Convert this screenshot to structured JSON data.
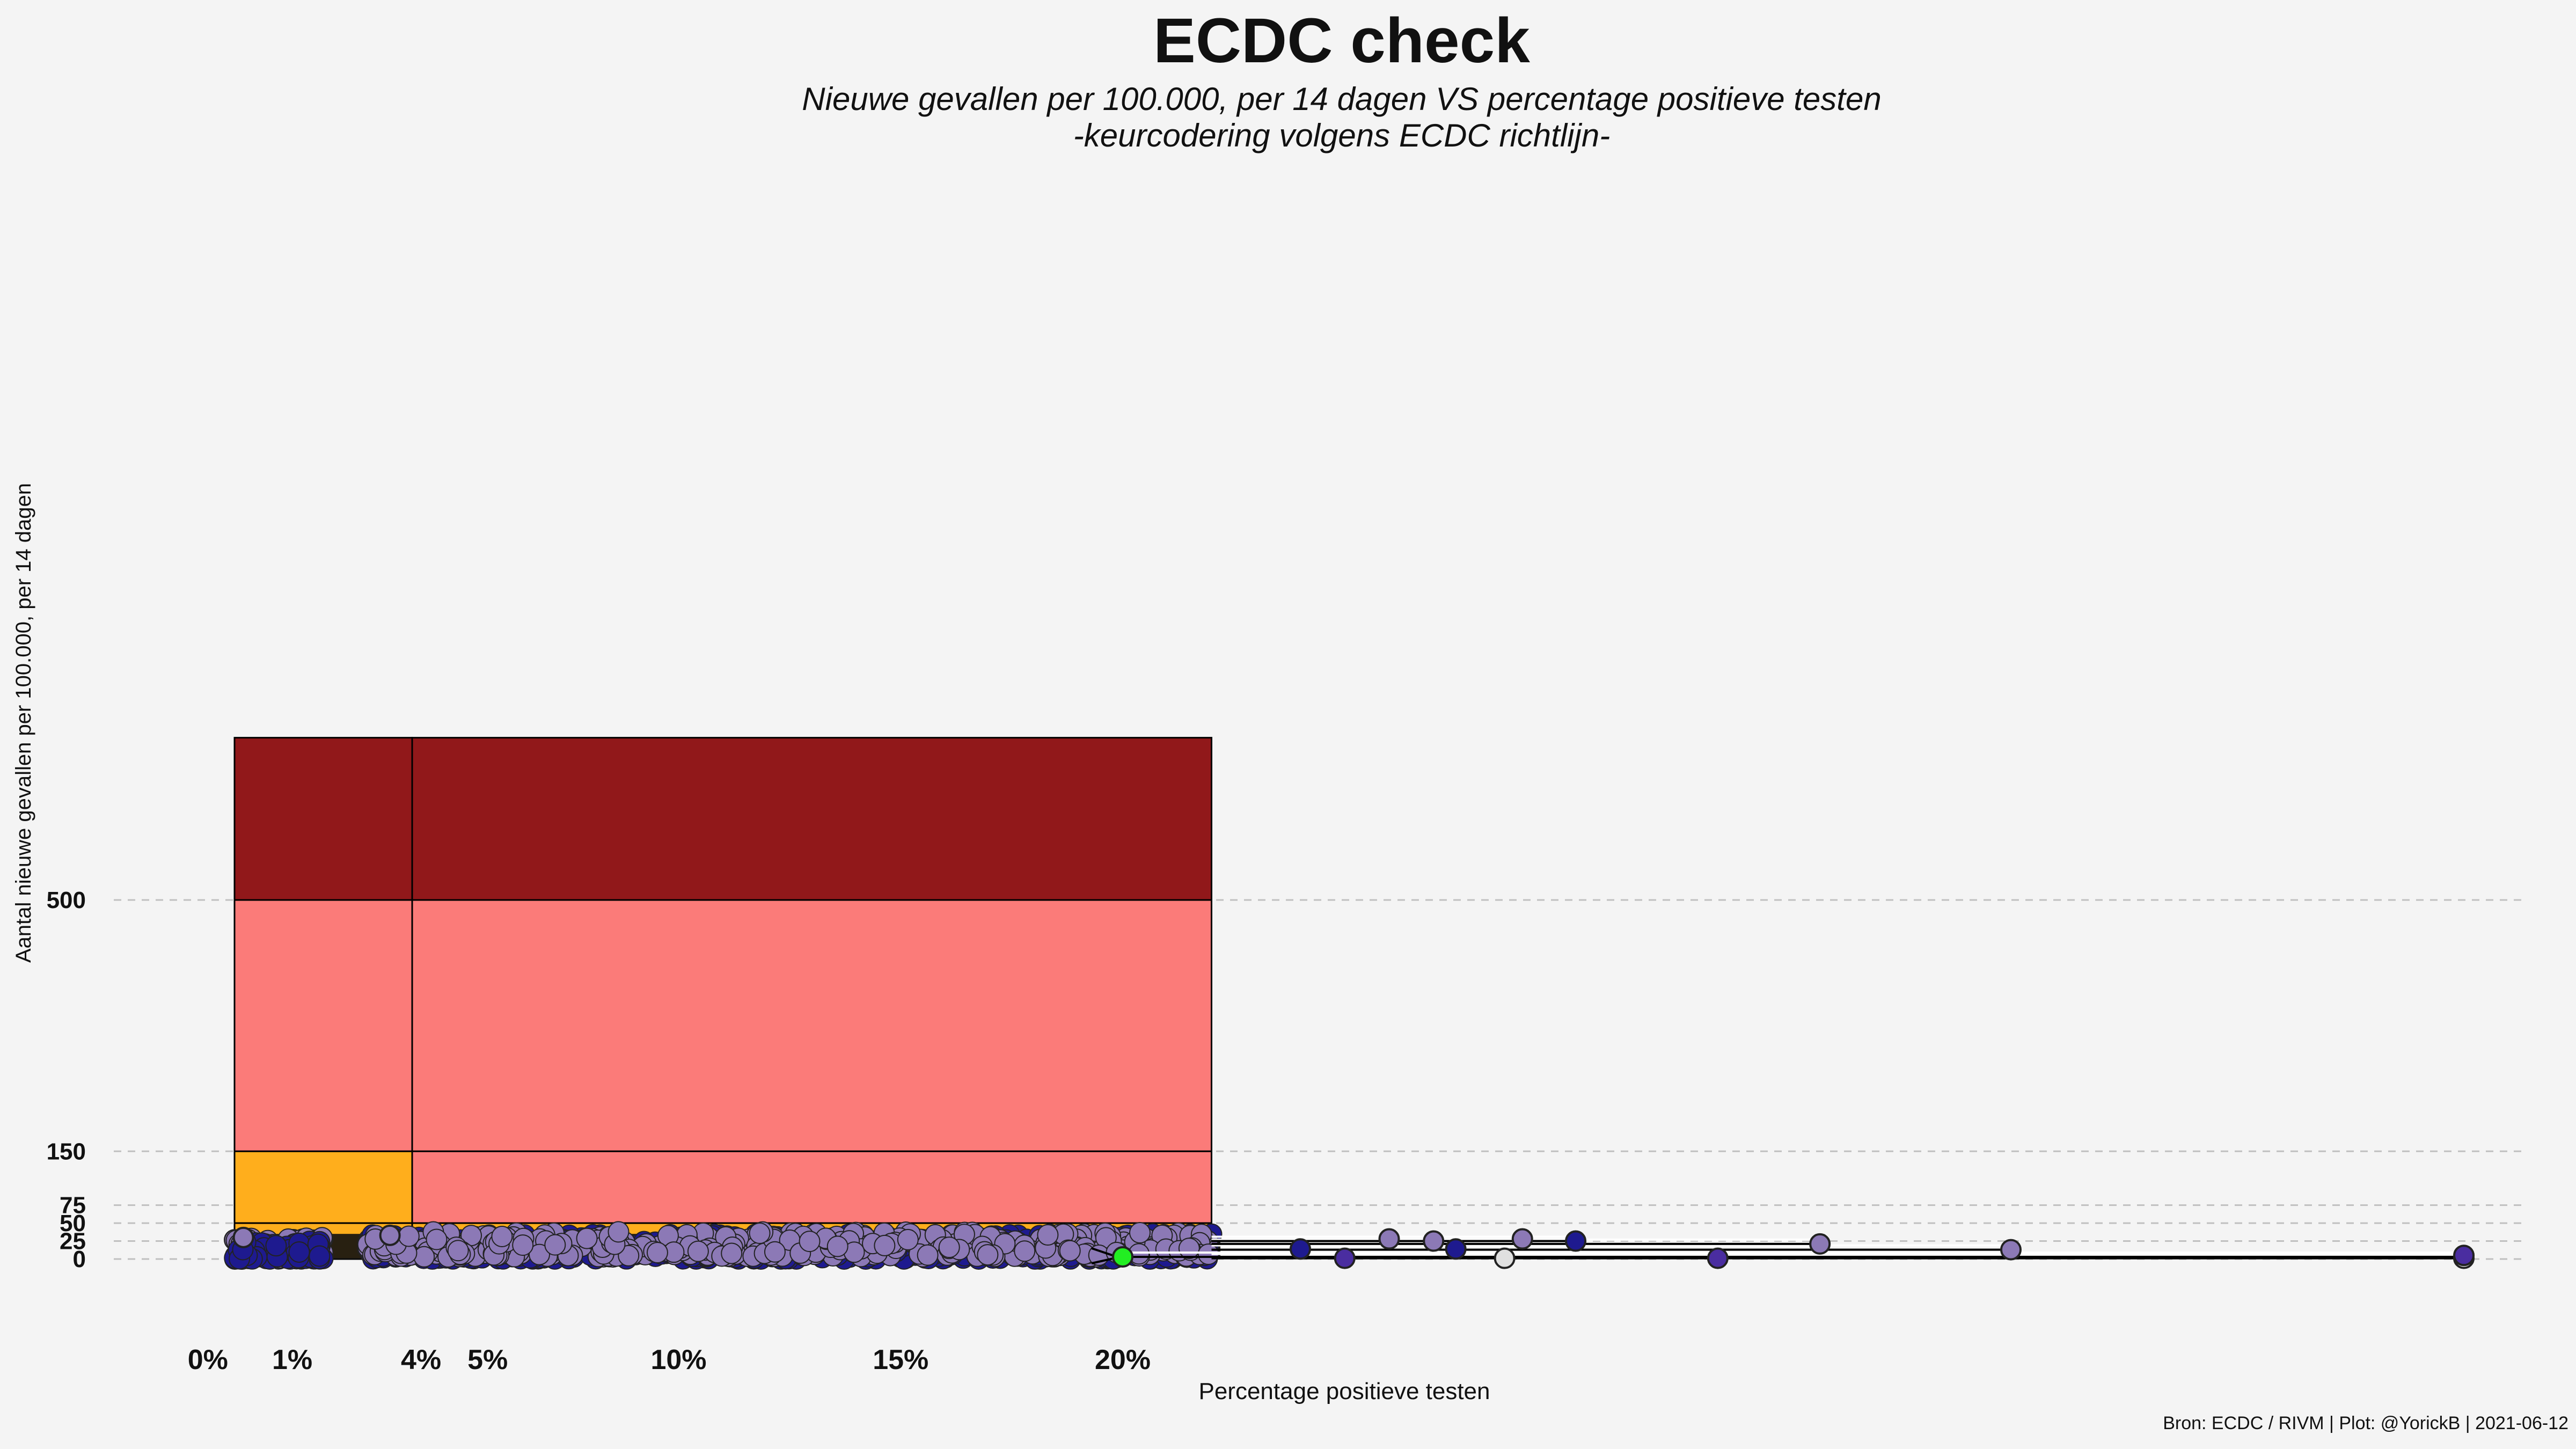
{
  "chart_data": {
    "type": "scatter",
    "title": "ECDC check",
    "subtitle": [
      "Nieuwe gevallen per 100.000, per 14 dagen  VS  percentage positieve testen",
      "-keurcodering volgens ECDC richtlijn-"
    ],
    "xlabel": "Percentage positieve testen",
    "ylabel": "Aantal nieuwe gevallen per 100.000, per 14 dagen",
    "caption": "Bron: ECDC / RIVM | Plot: @YorickB |  2021-06-12",
    "x_ticks": [
      {
        "value": 0,
        "label": "0%"
      },
      {
        "value": 1,
        "label": "1%"
      },
      {
        "value": 4,
        "label": "4%"
      },
      {
        "value": 5,
        "label": "5%"
      },
      {
        "value": 10,
        "label": "10%"
      },
      {
        "value": 15,
        "label": "15%"
      },
      {
        "value": 20,
        "label": "20%"
      }
    ],
    "y_ticks": [
      0,
      25,
      50,
      75,
      150,
      500
    ],
    "xlim": [
      0,
      51
    ],
    "ylim": [
      0,
      726
    ],
    "grid": "horizontal dashed",
    "colors": {
      "dark_red": "#91181a",
      "red": "#fb7b79",
      "orange": "#ffae1c",
      "point_dark": "#1e1a8f",
      "point_light": "#8c79b6",
      "point_mid": "#4a2da0",
      "point_white": "#e0e0e0",
      "highlight": "#22ee22"
    },
    "zones": [
      {
        "x": [
          0,
          4
        ],
        "y": [
          500,
          726
        ],
        "color": "dark_red"
      },
      {
        "x": [
          4,
          22
        ],
        "y": [
          500,
          726
        ],
        "color": "dark_red"
      },
      {
        "x": [
          0,
          4
        ],
        "y": [
          150,
          500
        ],
        "color": "red"
      },
      {
        "x": [
          4,
          22
        ],
        "y": [
          150,
          500
        ],
        "color": "red"
      },
      {
        "x": [
          0,
          4
        ],
        "y": [
          50,
          150
        ],
        "color": "orange"
      },
      {
        "x": [
          4,
          22
        ],
        "y": [
          50,
          150
        ],
        "color": "red"
      },
      {
        "x": [
          0,
          4
        ],
        "y": [
          0,
          50
        ],
        "color": "orange"
      },
      {
        "x": [
          4,
          22
        ],
        "y": [
          0,
          50
        ],
        "color": "orange"
      }
    ],
    "series": [
      {
        "points": [
          {
            "x": 20.0,
            "y": 3,
            "color": "highlight"
          },
          {
            "x": 25.0,
            "y": 1,
            "color": "point_mid"
          },
          {
            "x": 28.6,
            "y": 1,
            "color": "point_white"
          },
          {
            "x": 33.4,
            "y": 1,
            "color": "point_mid"
          },
          {
            "x": 50.2,
            "y": 1,
            "color": "point_white"
          },
          {
            "x": 50.2,
            "y": 5,
            "color": "point_mid"
          },
          {
            "x": 40.0,
            "y": 13,
            "color": "point_light"
          },
          {
            "x": 35.7,
            "y": 21,
            "color": "point_light"
          },
          {
            "x": 30.2,
            "y": 25,
            "color": "point_dark"
          },
          {
            "x": 27.5,
            "y": 14,
            "color": "point_dark"
          },
          {
            "x": 24.0,
            "y": 14,
            "color": "point_dark"
          },
          {
            "x": 26.0,
            "y": 28,
            "color": "point_light"
          },
          {
            "x": 27.0,
            "y": 25,
            "color": "point_light"
          },
          {
            "x": 29.0,
            "y": 28,
            "color": "point_light"
          },
          {
            "x": 3.5,
            "y": 33,
            "color": "point_light"
          },
          {
            "x": 0.2,
            "y": 30,
            "color": "point_light"
          }
        ]
      }
    ],
    "trails": [
      {
        "from": [
          20.0,
          3
        ],
        "to": [
          50.2,
          3
        ]
      },
      {
        "from": [
          22.0,
          1
        ],
        "to": [
          50.2,
          1
        ]
      },
      {
        "from": [
          22.0,
          13
        ],
        "to": [
          40.0,
          13
        ]
      },
      {
        "from": [
          22.0,
          21
        ],
        "to": [
          35.7,
          21
        ]
      },
      {
        "from": [
          22.0,
          25
        ],
        "to": [
          30.2,
          25
        ]
      }
    ],
    "arrow": {
      "from": [
        19.3,
        0
      ],
      "to": [
        19.9,
        2.4
      ]
    },
    "clusters": [
      {
        "x": [
          0,
          2
        ],
        "y": [
          0,
          30
        ],
        "count": 120,
        "color": "point_light"
      },
      {
        "x": [
          0,
          2
        ],
        "y": [
          0,
          25
        ],
        "count": 80,
        "color": "point_dark"
      },
      {
        "x": [
          3,
          22
        ],
        "y": [
          0,
          35
        ],
        "count": 520,
        "color": "point_dark"
      },
      {
        "x": [
          3,
          22
        ],
        "y": [
          3,
          38
        ],
        "count": 420,
        "color": "point_light"
      },
      {
        "x": 4.5,
        "y": [
          0,
          30
        ],
        "count": 0,
        "color": "point_mid"
      }
    ]
  }
}
